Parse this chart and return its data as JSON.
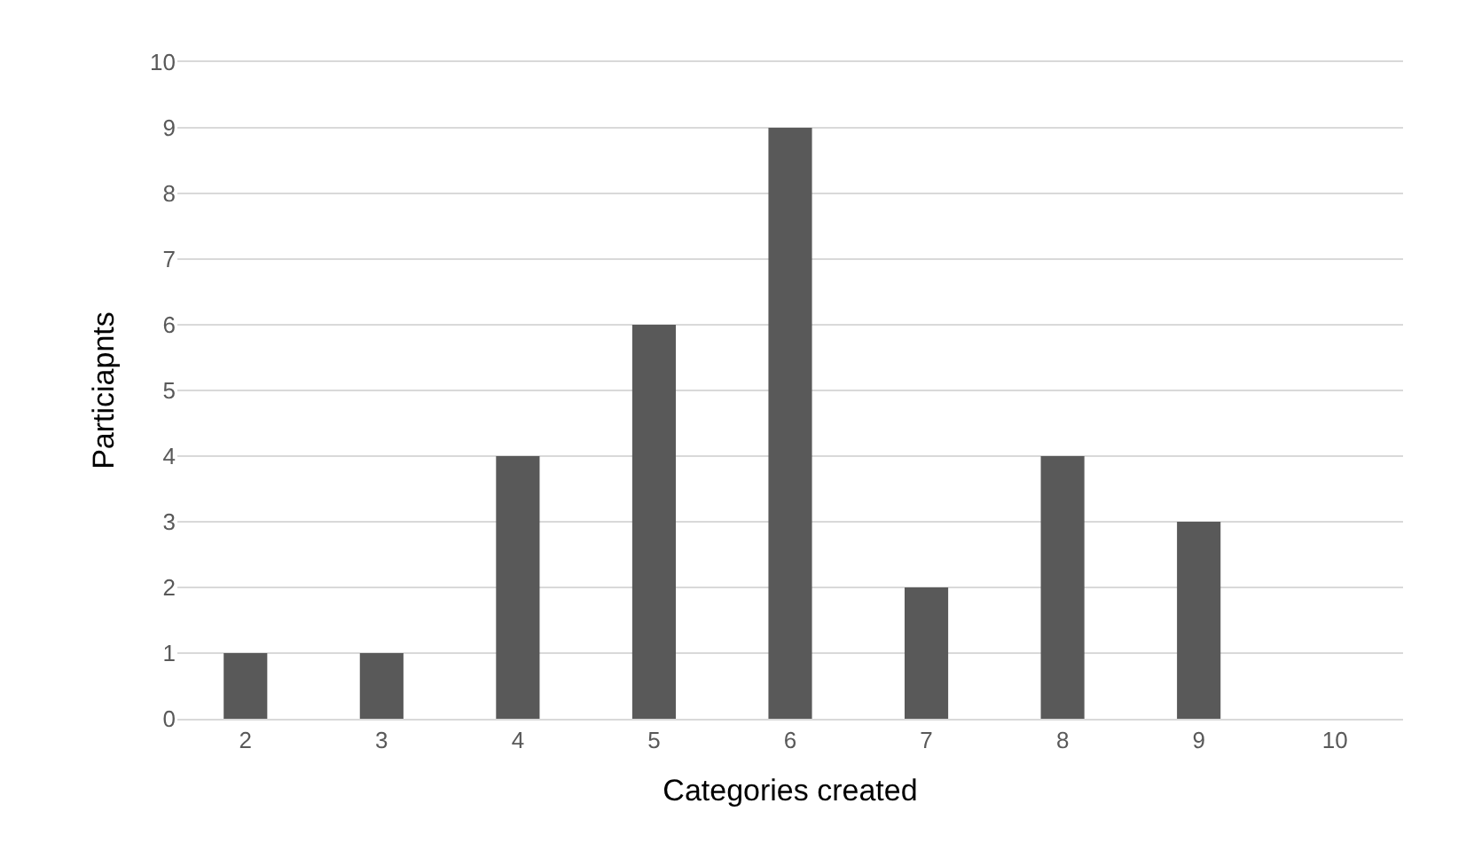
{
  "chart_data": {
    "type": "bar",
    "xlabel": "Categories created",
    "ylabel": "Particiapnts",
    "categories": [
      "2",
      "3",
      "4",
      "5",
      "6",
      "7",
      "8",
      "9",
      "10"
    ],
    "values": [
      1,
      1,
      4,
      6,
      9,
      2,
      4,
      3,
      0
    ],
    "color": "#595959",
    "ylim": [
      0,
      10
    ],
    "yticks": [
      0,
      1,
      2,
      3,
      4,
      5,
      6,
      7,
      8,
      9,
      10
    ],
    "grid": "y"
  }
}
